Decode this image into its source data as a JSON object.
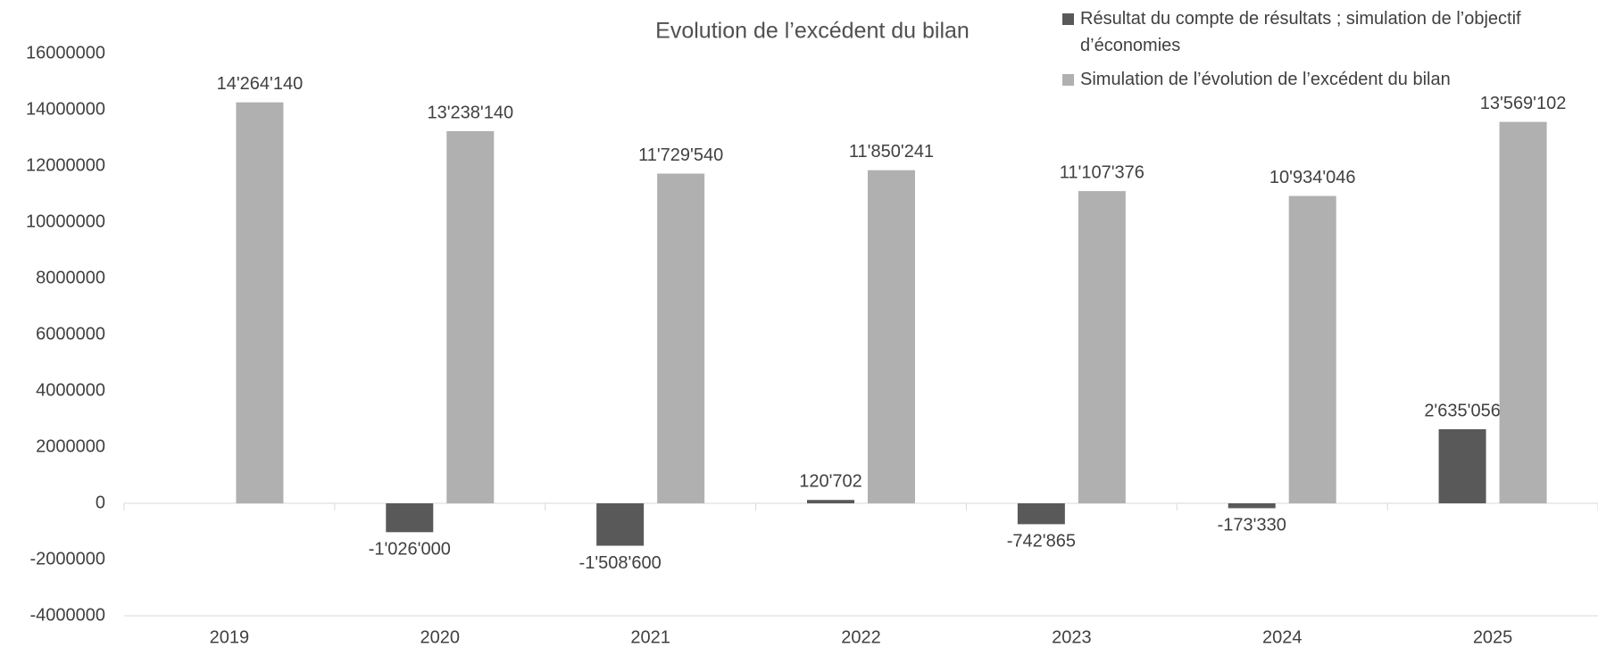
{
  "chart_data": {
    "type": "bar",
    "title": "Evolution de l’excédent du bilan",
    "categories": [
      "2019",
      "2020",
      "2021",
      "2022",
      "2023",
      "2024",
      "2025"
    ],
    "series": [
      {
        "name": "Résultat du compte de résultats ; simulation de l’objectif d’économies",
        "color": "#595959",
        "values": [
          null,
          -1026000,
          -1508600,
          120702,
          -742865,
          -173330,
          2635056
        ],
        "value_labels": [
          null,
          "-1'026'000",
          "-1'508'600",
          "120'702",
          "-742'865",
          "-173'330",
          "2'635'056"
        ]
      },
      {
        "name": "Simulation de l’évolution de l’excédent du bilan",
        "color": "#b0b0b0",
        "values": [
          14264140,
          13238140,
          11729540,
          11850241,
          11107376,
          10934046,
          13569102
        ],
        "value_labels": [
          "14'264'140",
          "13'238'140",
          "11'729'540",
          "11'850'241",
          "11'107'376",
          "10'934'046",
          "13'569'102"
        ]
      }
    ],
    "ylim": [
      -4000000,
      16000000
    ],
    "yticks": [
      -4000000,
      -2000000,
      0,
      2000000,
      4000000,
      6000000,
      8000000,
      10000000,
      12000000,
      14000000,
      16000000
    ],
    "grid": false
  }
}
